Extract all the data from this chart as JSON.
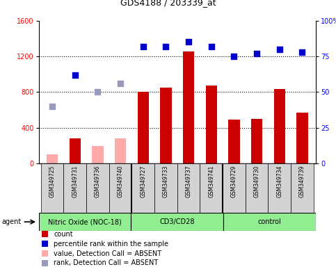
{
  "title": "GDS4188 / 203339_at",
  "samples": [
    "GSM349725",
    "GSM349731",
    "GSM349736",
    "GSM349740",
    "GSM349727",
    "GSM349733",
    "GSM349737",
    "GSM349741",
    "GSM349729",
    "GSM349730",
    "GSM349734",
    "GSM349739"
  ],
  "count_values": [
    100,
    280,
    195,
    280,
    800,
    850,
    1255,
    870,
    490,
    500,
    830,
    570
  ],
  "count_absent": [
    true,
    false,
    true,
    true,
    false,
    false,
    false,
    false,
    false,
    false,
    false,
    false
  ],
  "rank_values": [
    40,
    62,
    50,
    56,
    82,
    82,
    85,
    82,
    75,
    77,
    80,
    78
  ],
  "rank_absent": [
    true,
    false,
    true,
    true,
    false,
    false,
    false,
    false,
    false,
    false,
    false,
    false
  ],
  "ylim_left": [
    0,
    1600
  ],
  "ylim_right": [
    0,
    100
  ],
  "yticks_left": [
    0,
    400,
    800,
    1200,
    1600
  ],
  "yticks_right": [
    0,
    25,
    50,
    75,
    100
  ],
  "bar_color_present": "#cc0000",
  "bar_color_absent": "#ffaaaa",
  "rank_color_present": "#0000cc",
  "rank_color_absent": "#9999bb",
  "bar_width": 0.5,
  "background_color": "#ffffff",
  "group_starts": [
    0,
    4,
    8
  ],
  "group_ends": [
    4,
    8,
    12
  ],
  "group_labels": [
    "Nitric Oxide (NOC-18)",
    "CD3/CD28",
    "control"
  ],
  "group_color": "#90ee90",
  "legend_items": [
    {
      "label": "count",
      "color": "#cc0000"
    },
    {
      "label": "percentile rank within the sample",
      "color": "#0000cc"
    },
    {
      "label": "value, Detection Call = ABSENT",
      "color": "#ffaaaa"
    },
    {
      "label": "rank, Detection Call = ABSENT",
      "color": "#9999bb"
    }
  ]
}
